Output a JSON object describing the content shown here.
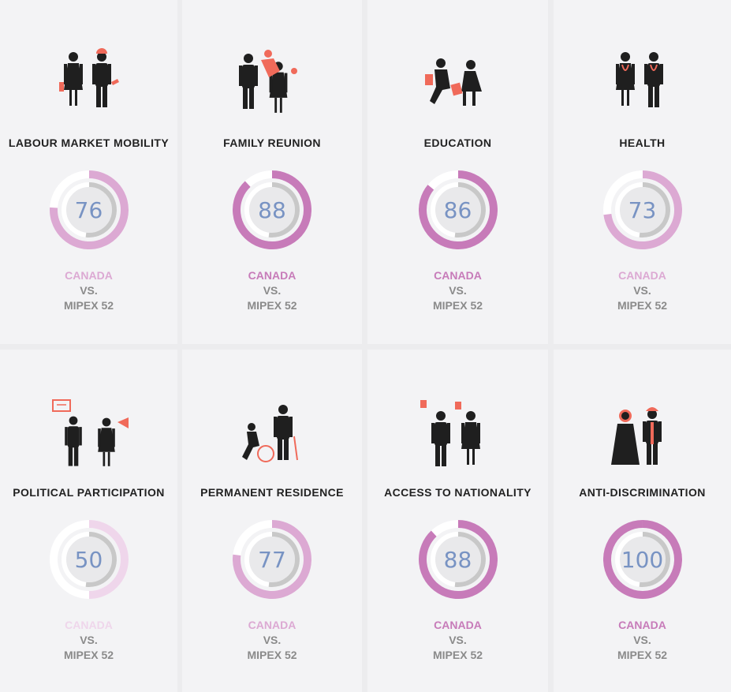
{
  "colors": {
    "ring_track": "#c8c8c8",
    "ring_inner": "#e9e9eb",
    "score_text": "#7893c3",
    "accent_orange": "#f06a5a",
    "figure_dark": "#1f1f1f"
  },
  "cards": [
    {
      "title": "LABOUR MARKET MOBILITY",
      "score": "76",
      "value": 76,
      "mipex_value": 52,
      "country": "CANADA",
      "vs": "VS.",
      "mipex": "MIPEX 52",
      "color": "#dca9d3",
      "icon": "workers-icon"
    },
    {
      "title": "FAMILY REUNION",
      "score": "88",
      "value": 88,
      "mipex_value": 52,
      "country": "CANADA",
      "vs": "VS.",
      "mipex": "MIPEX 52",
      "color": "#c77bb9",
      "icon": "family-icon"
    },
    {
      "title": "EDUCATION",
      "score": "86",
      "value": 86,
      "mipex_value": 52,
      "country": "CANADA",
      "vs": "VS.",
      "mipex": "MIPEX 52",
      "color": "#c77bb9",
      "icon": "students-icon"
    },
    {
      "title": "HEALTH",
      "score": "73",
      "value": 73,
      "mipex_value": 52,
      "country": "CANADA",
      "vs": "VS.",
      "mipex": "MIPEX 52",
      "color": "#dca9d3",
      "icon": "doctors-icon"
    },
    {
      "title": "POLITICAL PARTICIPATION",
      "score": "50",
      "value": 50,
      "mipex_value": 52,
      "country": "CANADA",
      "vs": "VS.",
      "mipex": "MIPEX 52",
      "color": "#efd6eb",
      "icon": "protest-icon"
    },
    {
      "title": "PERMANENT RESIDENCE",
      "score": "77",
      "value": 77,
      "mipex_value": 52,
      "country": "CANADA",
      "vs": "VS.",
      "mipex": "MIPEX 52",
      "color": "#dca9d3",
      "icon": "residents-icon"
    },
    {
      "title": "ACCESS TO NATIONALITY",
      "score": "88",
      "value": 88,
      "mipex_value": 52,
      "country": "CANADA",
      "vs": "VS.",
      "mipex": "MIPEX 52",
      "color": "#c77bb9",
      "icon": "citizens-icon"
    },
    {
      "title": "ANTI-DISCRIMINATION",
      "score": "100",
      "value": 100,
      "mipex_value": 52,
      "country": "CANADA",
      "vs": "VS.",
      "mipex": "MIPEX 52",
      "color": "#c77bb9",
      "icon": "diverse-people-icon"
    }
  ]
}
